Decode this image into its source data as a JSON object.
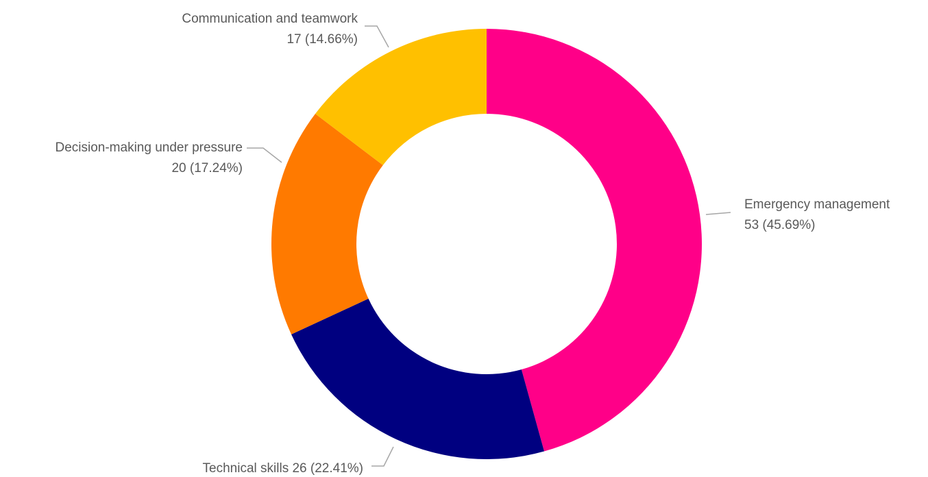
{
  "chart_data": {
    "type": "pie",
    "variant": "donut",
    "start_angle_deg": 0,
    "direction": "clockwise",
    "legend": "none",
    "slices": [
      {
        "name": "Emergency management",
        "value": 53,
        "percent_label": "53 (45.69%)",
        "color": "#ff0088"
      },
      {
        "name": "Technical skills",
        "value": 26,
        "percent_label": "26 (22.41%)",
        "color": "#000080"
      },
      {
        "name": "Decision-making under pressure",
        "value": 20,
        "percent_label": "20 (17.24%)",
        "color": "#ff7a00"
      },
      {
        "name": "Communication and teamwork",
        "value": 17,
        "percent_label": "17 (14.66%)",
        "color": "#ffc000"
      }
    ]
  }
}
